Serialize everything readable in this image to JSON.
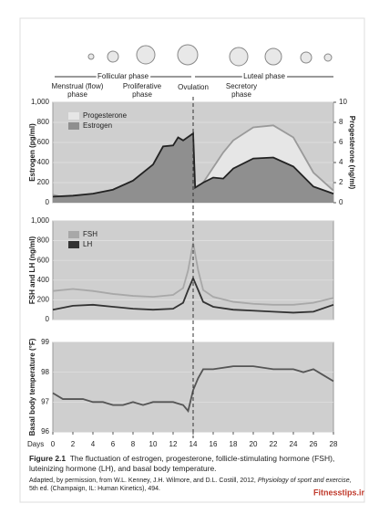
{
  "phases": {
    "follicular": "Follicular phase",
    "luteal": "Luteal phase",
    "menstrual": [
      "Menstrual (flow)",
      "phase"
    ],
    "proliferative": [
      "Proliferative",
      "phase"
    ],
    "ovulation": "Ovulation",
    "secretory": [
      "Secretory",
      "phase"
    ]
  },
  "chart_data": [
    {
      "type": "line",
      "ylabel": "Estrogen (pg/ml)",
      "y2label": "Progesterone (ng/ml)",
      "xlim": [
        0,
        28
      ],
      "ylim": [
        0,
        1000
      ],
      "yticks": [
        0,
        200,
        400,
        600,
        800,
        {
          "value": 1000,
          "label": "1,000"
        }
      ],
      "y2lim": [
        0,
        10
      ],
      "y2ticks": [
        0,
        2,
        4,
        6,
        8,
        10
      ],
      "x": [
        0,
        2,
        4,
        6,
        8,
        10,
        11,
        12,
        12.5,
        13,
        14,
        14.2,
        15,
        16,
        17,
        18,
        20,
        22,
        24,
        26,
        28
      ],
      "series": [
        {
          "name": "Progesterone",
          "axis": "y2",
          "color": "#9a9a9a",
          "fill": "#e6e6e6",
          "values": [
            0.8,
            0.3,
            0.3,
            0.3,
            0.3,
            0.3,
            0.3,
            0.4,
            0.4,
            0.4,
            0.5,
            1.0,
            2.0,
            3.5,
            5.0,
            6.2,
            7.5,
            7.7,
            6.5,
            3,
            1.2
          ]
        },
        {
          "name": "Estrogen",
          "color": "#222",
          "fill": "#8f8f8f",
          "values": [
            60,
            70,
            90,
            130,
            220,
            380,
            560,
            570,
            650,
            620,
            690,
            150,
            200,
            250,
            240,
            340,
            440,
            450,
            360,
            160,
            90
          ]
        }
      ]
    },
    {
      "type": "line",
      "ylabel": "FSH and LH (ng/ml)",
      "xlim": [
        0,
        28
      ],
      "ylim": [
        0,
        1000
      ],
      "yticks": [
        0,
        200,
        400,
        600,
        800,
        {
          "value": 1000,
          "label": "1,000"
        }
      ],
      "x": [
        0,
        2,
        4,
        6,
        8,
        10,
        12,
        13,
        13.5,
        14,
        14.5,
        15,
        16,
        18,
        20,
        22,
        24,
        26,
        28
      ],
      "series": [
        {
          "name": "FSH",
          "color": "#a8a8a8",
          "values": [
            290,
            310,
            290,
            260,
            240,
            230,
            250,
            320,
            500,
            780,
            500,
            300,
            230,
            180,
            160,
            150,
            150,
            170,
            220
          ]
        },
        {
          "name": "LH",
          "color": "#333",
          "values": [
            100,
            140,
            150,
            130,
            110,
            100,
            110,
            170,
            300,
            420,
            300,
            180,
            130,
            100,
            90,
            80,
            70,
            80,
            150
          ]
        }
      ]
    },
    {
      "type": "line",
      "ylabel": "Basal body temperature (°F)",
      "xlabel": "Days",
      "xlim": [
        0,
        28
      ],
      "ylim": [
        96,
        99
      ],
      "yticks": [
        96,
        97,
        98,
        99
      ],
      "xticks": [
        0,
        2,
        4,
        6,
        8,
        10,
        12,
        14,
        16,
        18,
        20,
        22,
        24,
        26,
        28
      ],
      "x": [
        0,
        1,
        2,
        3,
        4,
        5,
        6,
        7,
        8,
        9,
        10,
        11,
        12,
        13,
        13.5,
        14,
        14.5,
        15,
        16,
        18,
        20,
        22,
        24,
        25,
        26,
        27,
        28
      ],
      "series": [
        {
          "name": "Basal body temperature",
          "color": "#555",
          "values": [
            97.3,
            97.1,
            97.1,
            97.1,
            97.0,
            97.0,
            96.9,
            96.9,
            97.0,
            96.9,
            97.0,
            97.0,
            97.0,
            96.9,
            96.7,
            97.4,
            97.8,
            98.1,
            98.1,
            98.2,
            98.2,
            98.1,
            98.1,
            98.0,
            98.1,
            97.9,
            97.7
          ]
        }
      ]
    }
  ],
  "caption": {
    "label": "Figure 2.1",
    "text": "The fluctuation of estrogen, progesterone, follicle-stimulating hormone (FSH), luteinizing hormone (LH), and basal body temperature.",
    "credit": [
      "Adapted, by permission, from W.L. Kenney, J.H. Wilmore, and D.L. Costill, 2012, ",
      "Physiology of sport and exercise,",
      " 5th ed. (Champaign, IL: Human Kinetics), 494."
    ]
  },
  "watermark": "Fitnesstips.ir"
}
